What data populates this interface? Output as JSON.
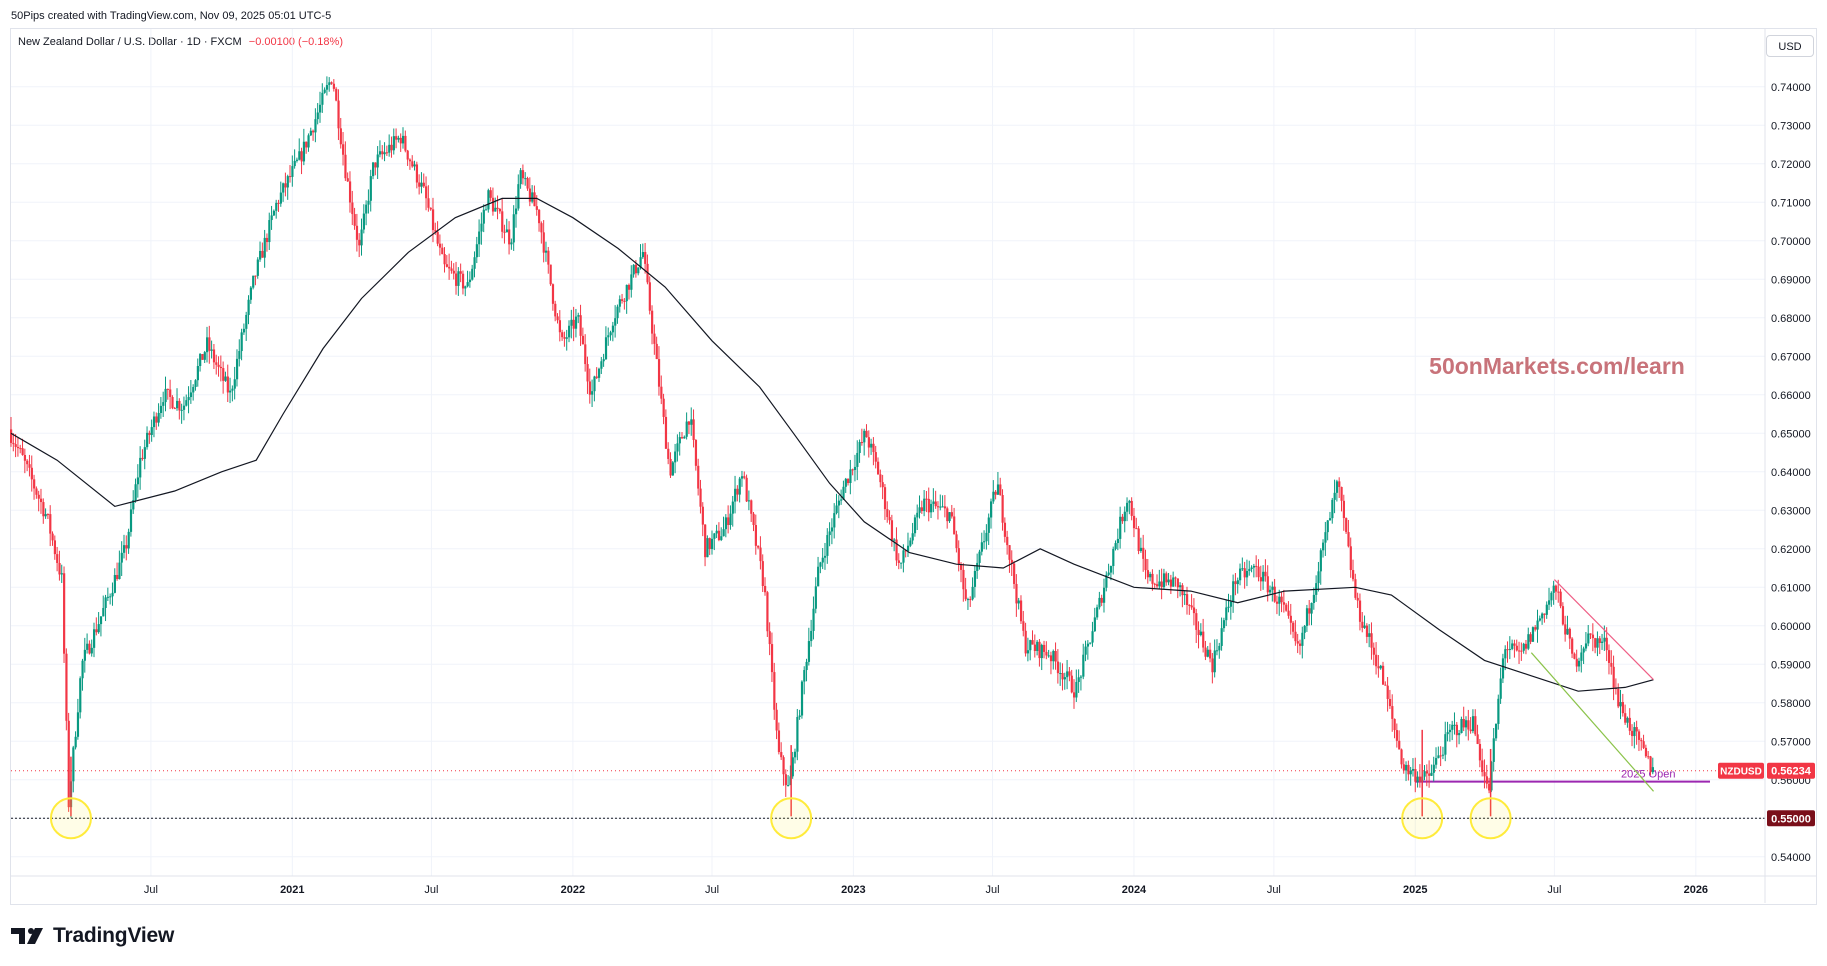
{
  "header": {
    "credit": "50Pips created with TradingView.com, Nov 09, 2025 05:01 UTC-5",
    "symbol_title": "New Zealand Dollar / U.S. Dollar · 1D · FXCM",
    "change": "−0.00100 (−0.18%)",
    "currency_button": "USD"
  },
  "footer": {
    "brand": "TradingView"
  },
  "colors": {
    "up": "#089981",
    "down": "#f23645",
    "ma": "#131722",
    "open_line": "#9c27b0",
    "watermark": "#c8737a",
    "down_trend": "#ef5f86",
    "up_trend_green": "#8bc34a",
    "circle": "#ffeb3b"
  },
  "chart_data": {
    "type": "candlestick",
    "symbol": "NZDUSD",
    "timeframe": "1D",
    "x_axis": {
      "range": [
        "2020-01-01",
        "2026-04-01"
      ],
      "ticks": [
        {
          "date": "2020-07-01",
          "label": "Jul"
        },
        {
          "date": "2021-01-01",
          "label": "2021"
        },
        {
          "date": "2021-07-01",
          "label": "Jul"
        },
        {
          "date": "2022-01-01",
          "label": "2022"
        },
        {
          "date": "2022-07-01",
          "label": "Jul"
        },
        {
          "date": "2023-01-01",
          "label": "2023"
        },
        {
          "date": "2023-07-01",
          "label": "Jul"
        },
        {
          "date": "2024-01-01",
          "label": "2024"
        },
        {
          "date": "2024-07-01",
          "label": "Jul"
        },
        {
          "date": "2025-01-01",
          "label": "2025"
        },
        {
          "date": "2025-07-01",
          "label": "Jul"
        },
        {
          "date": "2026-01-01",
          "label": "2026"
        }
      ]
    },
    "y_axis": {
      "range": [
        0.535,
        0.755
      ],
      "ticks": [
        {
          "v": 0.54,
          "label": "0.54000"
        },
        {
          "v": 0.55,
          "label": "0.55000"
        },
        {
          "v": 0.56,
          "label": "0.56000"
        },
        {
          "v": 0.57,
          "label": "0.57000"
        },
        {
          "v": 0.58,
          "label": "0.58000"
        },
        {
          "v": 0.59,
          "label": "0.59000"
        },
        {
          "v": 0.6,
          "label": "0.60000"
        },
        {
          "v": 0.61,
          "label": "0.61000"
        },
        {
          "v": 0.62,
          "label": "0.62000"
        },
        {
          "v": 0.63,
          "label": "0.63000"
        },
        {
          "v": 0.64,
          "label": "0.64000"
        },
        {
          "v": 0.65,
          "label": "0.65000"
        },
        {
          "v": 0.66,
          "label": "0.66000"
        },
        {
          "v": 0.67,
          "label": "0.67000"
        },
        {
          "v": 0.68,
          "label": "0.68000"
        },
        {
          "v": 0.69,
          "label": "0.69000"
        },
        {
          "v": 0.7,
          "label": "0.70000"
        },
        {
          "v": 0.71,
          "label": "0.71000"
        },
        {
          "v": 0.72,
          "label": "0.72000"
        },
        {
          "v": 0.73,
          "label": "0.73000"
        },
        {
          "v": 0.74,
          "label": "0.74000"
        }
      ]
    },
    "price_path": [
      [
        "2020-01-01",
        0.651
      ],
      [
        "2020-01-20",
        0.643
      ],
      [
        "2020-02-20",
        0.628
      ],
      [
        "2020-03-10",
        0.612
      ],
      [
        "2020-03-19",
        0.554
      ],
      [
        "2020-04-05",
        0.59
      ],
      [
        "2020-05-05",
        0.605
      ],
      [
        "2020-06-01",
        0.62
      ],
      [
        "2020-06-20",
        0.643
      ],
      [
        "2020-07-20",
        0.66
      ],
      [
        "2020-08-15",
        0.657
      ],
      [
        "2020-09-15",
        0.673
      ],
      [
        "2020-10-15",
        0.66
      ],
      [
        "2020-11-15",
        0.69
      ],
      [
        "2020-12-15",
        0.71
      ],
      [
        "2021-01-15",
        0.722
      ],
      [
        "2021-02-25",
        0.743
      ],
      [
        "2021-03-15",
        0.717
      ],
      [
        "2021-04-01",
        0.698
      ],
      [
        "2021-04-20",
        0.72
      ],
      [
        "2021-05-25",
        0.727
      ],
      [
        "2021-06-25",
        0.712
      ],
      [
        "2021-07-20",
        0.693
      ],
      [
        "2021-08-20",
        0.688
      ],
      [
        "2021-09-15",
        0.712
      ],
      [
        "2021-10-15",
        0.7
      ],
      [
        "2021-10-27",
        0.717
      ],
      [
        "2021-11-20",
        0.707
      ],
      [
        "2021-12-20",
        0.673
      ],
      [
        "2022-01-10",
        0.68
      ],
      [
        "2022-01-28",
        0.66
      ],
      [
        "2022-02-25",
        0.68
      ],
      [
        "2022-03-20",
        0.69
      ],
      [
        "2022-04-05",
        0.697
      ],
      [
        "2022-05-10",
        0.64
      ],
      [
        "2022-06-05",
        0.655
      ],
      [
        "2022-06-25",
        0.62
      ],
      [
        "2022-07-20",
        0.625
      ],
      [
        "2022-08-12",
        0.64
      ],
      [
        "2022-09-10",
        0.61
      ],
      [
        "2022-09-28",
        0.567
      ],
      [
        "2022-10-12",
        0.557
      ],
      [
        "2022-10-30",
        0.585
      ],
      [
        "2022-11-20",
        0.615
      ],
      [
        "2022-12-20",
        0.635
      ],
      [
        "2023-01-20",
        0.65
      ],
      [
        "2023-02-05",
        0.64
      ],
      [
        "2023-03-05",
        0.615
      ],
      [
        "2023-04-05",
        0.632
      ],
      [
        "2023-05-10",
        0.629
      ],
      [
        "2023-06-01",
        0.604
      ],
      [
        "2023-07-10",
        0.637
      ],
      [
        "2023-08-15",
        0.595
      ],
      [
        "2023-09-15",
        0.593
      ],
      [
        "2023-10-20",
        0.583
      ],
      [
        "2023-11-15",
        0.602
      ],
      [
        "2023-12-27",
        0.634
      ],
      [
        "2024-01-20",
        0.612
      ],
      [
        "2024-03-01",
        0.611
      ],
      [
        "2024-04-15",
        0.59
      ],
      [
        "2024-05-15",
        0.612
      ],
      [
        "2024-06-10",
        0.615
      ],
      [
        "2024-07-15",
        0.605
      ],
      [
        "2024-08-05",
        0.593
      ],
      [
        "2024-09-25",
        0.637
      ],
      [
        "2024-10-20",
        0.605
      ],
      [
        "2024-11-20",
        0.588
      ],
      [
        "2024-12-20",
        0.563
      ],
      [
        "2025-01-20",
        0.56
      ],
      [
        "2025-02-20",
        0.573
      ],
      [
        "2025-03-20",
        0.575
      ],
      [
        "2025-04-09",
        0.556
      ],
      [
        "2025-04-30",
        0.595
      ],
      [
        "2025-05-20",
        0.592
      ],
      [
        "2025-06-15",
        0.602
      ],
      [
        "2025-07-05",
        0.61
      ],
      [
        "2025-07-30",
        0.59
      ],
      [
        "2025-08-15",
        0.597
      ],
      [
        "2025-09-10",
        0.595
      ],
      [
        "2025-09-25",
        0.58
      ],
      [
        "2025-10-15",
        0.572
      ],
      [
        "2025-11-07",
        0.563
      ]
    ],
    "moving_average": [
      [
        "2020-01-01",
        0.65
      ],
      [
        "2020-03-01",
        0.643
      ],
      [
        "2020-05-15",
        0.631
      ],
      [
        "2020-08-01",
        0.635
      ],
      [
        "2020-10-01",
        0.64
      ],
      [
        "2020-11-15",
        0.643
      ],
      [
        "2020-12-20",
        0.655
      ],
      [
        "2021-02-10",
        0.672
      ],
      [
        "2021-04-01",
        0.685
      ],
      [
        "2021-06-01",
        0.697
      ],
      [
        "2021-08-01",
        0.706
      ],
      [
        "2021-10-01",
        0.711
      ],
      [
        "2021-11-15",
        0.711
      ],
      [
        "2022-01-01",
        0.706
      ],
      [
        "2022-03-01",
        0.698
      ],
      [
        "2022-05-01",
        0.688
      ],
      [
        "2022-07-01",
        0.674
      ],
      [
        "2022-09-01",
        0.662
      ],
      [
        "2022-10-15",
        0.65
      ],
      [
        "2022-12-01",
        0.637
      ],
      [
        "2023-01-15",
        0.627
      ],
      [
        "2023-03-15",
        0.619
      ],
      [
        "2023-05-15",
        0.616
      ],
      [
        "2023-07-15",
        0.615
      ],
      [
        "2023-09-01",
        0.62
      ],
      [
        "2023-10-15",
        0.616
      ],
      [
        "2024-01-01",
        0.61
      ],
      [
        "2024-03-15",
        0.609
      ],
      [
        "2024-05-15",
        0.606
      ],
      [
        "2024-07-15",
        0.609
      ],
      [
        "2024-10-15",
        0.61
      ],
      [
        "2024-12-01",
        0.608
      ],
      [
        "2025-02-01",
        0.599
      ],
      [
        "2025-04-01",
        0.591
      ],
      [
        "2025-06-01",
        0.587
      ],
      [
        "2025-08-01",
        0.583
      ],
      [
        "2025-10-01",
        0.584
      ],
      [
        "2025-11-07",
        0.586
      ]
    ],
    "open_2025": {
      "value": 0.5595,
      "label": "2025 Open",
      "from": "2025-01-01",
      "to": "2026-04-01"
    },
    "support_line": {
      "value": 0.55,
      "label": "0.55000"
    },
    "last_price": {
      "value": 0.56234,
      "label": "0.56234",
      "symbol_tag": "NZDUSD"
    },
    "trend_lines": [
      {
        "name": "downtrend",
        "points": [
          [
            "2025-07-01",
            0.612
          ],
          [
            "2025-11-07",
            0.586
          ]
        ]
      },
      {
        "name": "uptrend",
        "points": [
          [
            "2025-06-01",
            0.593
          ],
          [
            "2025-11-07",
            0.557
          ]
        ]
      }
    ],
    "support_circles": [
      "2020-03-19",
      "2022-10-12",
      "2025-01-10",
      "2025-04-09"
    ],
    "watermark": "50onMarkets.com/learn"
  }
}
